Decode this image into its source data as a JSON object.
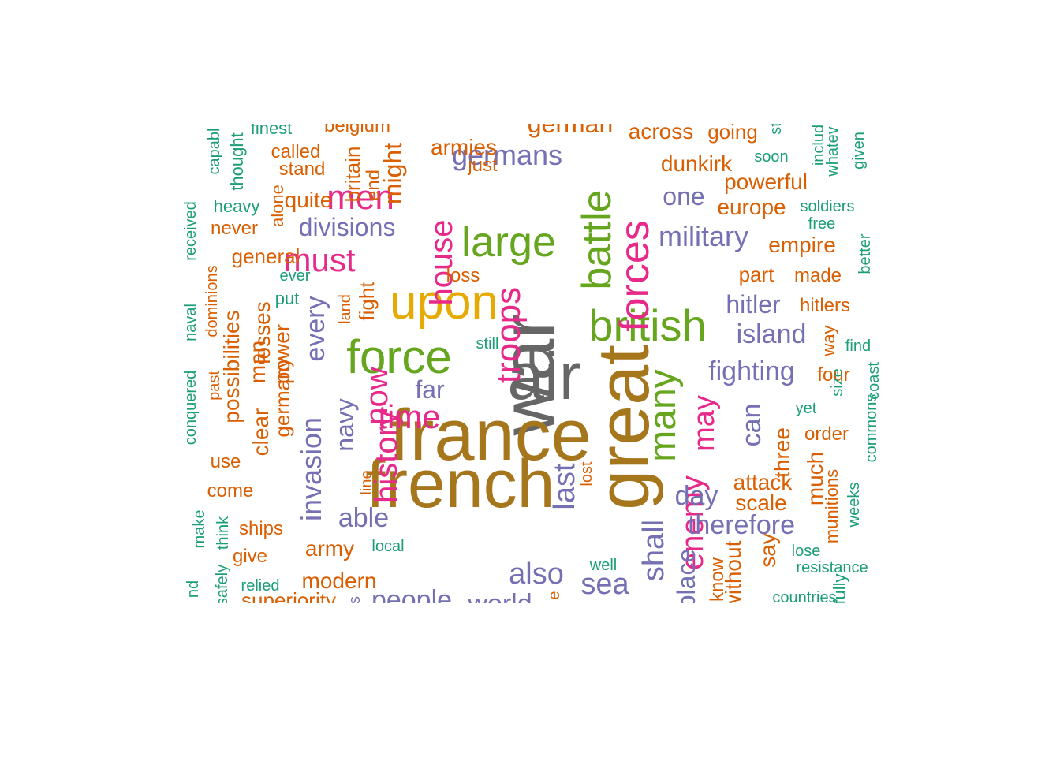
{
  "palette": {
    "gray": "#666666",
    "olive": "#a6761d",
    "pink": "#e7298a",
    "green": "#66a61e",
    "purple": "#7570b3",
    "gold": "#e6ab02",
    "orange": "#d95f02",
    "teal": "#1b9e77"
  },
  "words": [
    {
      "text": "war",
      "color": "gray"
    },
    {
      "text": "air",
      "color": "gray"
    },
    {
      "text": "france",
      "color": "olive"
    },
    {
      "text": "french",
      "color": "olive"
    },
    {
      "text": "great",
      "color": "olive"
    },
    {
      "text": "upon",
      "color": "gold"
    },
    {
      "text": "british",
      "color": "green"
    },
    {
      "text": "battle",
      "color": "green"
    },
    {
      "text": "large",
      "color": "green"
    },
    {
      "text": "force",
      "color": "green"
    },
    {
      "text": "many",
      "color": "green"
    },
    {
      "text": "forces",
      "color": "pink"
    },
    {
      "text": "troops",
      "color": "pink"
    },
    {
      "text": "enemy",
      "color": "pink"
    },
    {
      "text": "men",
      "color": "pink"
    },
    {
      "text": "must",
      "color": "pink"
    },
    {
      "text": "house",
      "color": "pink"
    },
    {
      "text": "time",
      "color": "pink"
    },
    {
      "text": "history",
      "color": "pink"
    },
    {
      "text": "now",
      "color": "pink"
    },
    {
      "text": "may",
      "color": "pink"
    },
    {
      "text": "germans",
      "color": "purple"
    },
    {
      "text": "military",
      "color": "purple"
    },
    {
      "text": "one",
      "color": "purple"
    },
    {
      "text": "hitler",
      "color": "purple"
    },
    {
      "text": "island",
      "color": "purple"
    },
    {
      "text": "fighting",
      "color": "purple"
    },
    {
      "text": "therefore",
      "color": "purple"
    },
    {
      "text": "day",
      "color": "purple"
    },
    {
      "text": "divisions",
      "color": "purple"
    },
    {
      "text": "every",
      "color": "purple"
    },
    {
      "text": "invasion",
      "color": "purple"
    },
    {
      "text": "navy",
      "color": "purple"
    },
    {
      "text": "far",
      "color": "purple"
    },
    {
      "text": "able",
      "color": "purple"
    },
    {
      "text": "last",
      "color": "purple"
    },
    {
      "text": "also",
      "color": "purple"
    },
    {
      "text": "sea",
      "color": "purple"
    },
    {
      "text": "shall",
      "color": "purple"
    },
    {
      "text": "can",
      "color": "purple"
    },
    {
      "text": "people",
      "color": "purple"
    },
    {
      "text": "world",
      "color": "purple"
    },
    {
      "text": "place",
      "color": "purple"
    },
    {
      "text": "german",
      "color": "orange"
    },
    {
      "text": "across",
      "color": "orange"
    },
    {
      "text": "going",
      "color": "orange"
    },
    {
      "text": "armies",
      "color": "orange"
    },
    {
      "text": "dunkirk",
      "color": "orange"
    },
    {
      "text": "powerful",
      "color": "orange"
    },
    {
      "text": "europe",
      "color": "orange"
    },
    {
      "text": "empire",
      "color": "orange"
    },
    {
      "text": "part",
      "color": "orange"
    },
    {
      "text": "made",
      "color": "orange"
    },
    {
      "text": "hitlers",
      "color": "orange"
    },
    {
      "text": "four",
      "color": "orange"
    },
    {
      "text": "way",
      "color": "orange"
    },
    {
      "text": "order",
      "color": "orange"
    },
    {
      "text": "three",
      "color": "orange"
    },
    {
      "text": "attack",
      "color": "orange"
    },
    {
      "text": "scale",
      "color": "orange"
    },
    {
      "text": "much",
      "color": "orange"
    },
    {
      "text": "munitions",
      "color": "orange"
    },
    {
      "text": "say",
      "color": "orange"
    },
    {
      "text": "know",
      "color": "orange"
    },
    {
      "text": "without",
      "color": "orange"
    },
    {
      "text": "belgium",
      "color": "orange"
    },
    {
      "text": "called",
      "color": "orange"
    },
    {
      "text": "stand",
      "color": "orange"
    },
    {
      "text": "just",
      "color": "orange"
    },
    {
      "text": "britain",
      "color": "orange"
    },
    {
      "text": "end",
      "color": "orange"
    },
    {
      "text": "might",
      "color": "orange"
    },
    {
      "text": "quite",
      "color": "orange"
    },
    {
      "text": "alone",
      "color": "orange"
    },
    {
      "text": "never",
      "color": "orange"
    },
    {
      "text": "general",
      "color": "orange"
    },
    {
      "text": "loss",
      "color": "orange"
    },
    {
      "text": "fight",
      "color": "orange"
    },
    {
      "text": "land",
      "color": "orange"
    },
    {
      "text": "losses",
      "color": "orange"
    },
    {
      "text": "man",
      "color": "orange"
    },
    {
      "text": "power",
      "color": "orange"
    },
    {
      "text": "possibilities",
      "color": "orange"
    },
    {
      "text": "germany",
      "color": "orange"
    },
    {
      "text": "clear",
      "color": "orange"
    },
    {
      "text": "dominions",
      "color": "orange"
    },
    {
      "text": "past",
      "color": "orange"
    },
    {
      "text": "use",
      "color": "orange"
    },
    {
      "text": "come",
      "color": "orange"
    },
    {
      "text": "ships",
      "color": "orange"
    },
    {
      "text": "give",
      "color": "orange"
    },
    {
      "text": "army",
      "color": "orange"
    },
    {
      "text": "modern",
      "color": "orange"
    },
    {
      "text": "line",
      "color": "orange"
    },
    {
      "text": "lost",
      "color": "orange"
    },
    {
      "text": "superiority",
      "color": "orange"
    },
    {
      "text": "e",
      "color": "orange"
    },
    {
      "text": "s",
      "color": "purple"
    },
    {
      "text": "finest",
      "color": "teal"
    },
    {
      "text": "capabl",
      "color": "teal"
    },
    {
      "text": "thought",
      "color": "teal"
    },
    {
      "text": "heavy",
      "color": "teal"
    },
    {
      "text": "received",
      "color": "teal"
    },
    {
      "text": "ever",
      "color": "teal"
    },
    {
      "text": "put",
      "color": "teal"
    },
    {
      "text": "naval",
      "color": "teal"
    },
    {
      "text": "conquered",
      "color": "teal"
    },
    {
      "text": "still",
      "color": "teal"
    },
    {
      "text": "soon",
      "color": "teal"
    },
    {
      "text": "soldiers",
      "color": "teal"
    },
    {
      "text": "free",
      "color": "teal"
    },
    {
      "text": "better",
      "color": "teal"
    },
    {
      "text": "find",
      "color": "teal"
    },
    {
      "text": "coast",
      "color": "teal"
    },
    {
      "text": "yet",
      "color": "teal"
    },
    {
      "text": "size",
      "color": "teal"
    },
    {
      "text": "commons",
      "color": "teal"
    },
    {
      "text": "weeks",
      "color": "teal"
    },
    {
      "text": "lose",
      "color": "teal"
    },
    {
      "text": "resistance",
      "color": "teal"
    },
    {
      "text": "countries",
      "color": "teal"
    },
    {
      "text": "fully",
      "color": "teal"
    },
    {
      "text": "local",
      "color": "teal"
    },
    {
      "text": "well",
      "color": "teal"
    },
    {
      "text": "make",
      "color": "teal"
    },
    {
      "text": "think",
      "color": "teal"
    },
    {
      "text": "relied",
      "color": "teal"
    },
    {
      "text": "safely",
      "color": "teal"
    },
    {
      "text": "nd",
      "color": "teal"
    },
    {
      "text": "includ",
      "color": "teal"
    },
    {
      "text": "whatev",
      "color": "teal"
    },
    {
      "text": "given",
      "color": "teal"
    },
    {
      "text": "st",
      "color": "teal"
    }
  ]
}
